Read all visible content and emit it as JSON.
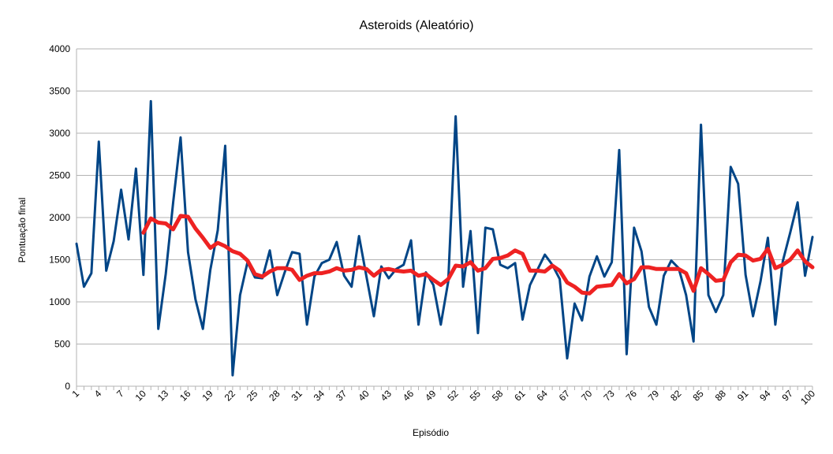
{
  "chart_data": {
    "type": "line",
    "title": "Asteroids (Aleatório)",
    "xlabel": "Episódio",
    "ylabel": "Pontuação final",
    "ylim": [
      0,
      4000
    ],
    "yticks": [
      0,
      500,
      1000,
      1500,
      2000,
      2500,
      3000,
      3500,
      4000
    ],
    "xtick_labels": [
      "1",
      "4",
      "7",
      "10",
      "13",
      "16",
      "19",
      "22",
      "25",
      "28",
      "31",
      "34",
      "37",
      "40",
      "43",
      "46",
      "49",
      "52",
      "55",
      "58",
      "61",
      "64",
      "67",
      "70",
      "73",
      "76",
      "79",
      "82",
      "85",
      "88",
      "91",
      "94",
      "97",
      "100"
    ],
    "grid": "horizontal",
    "legend": "none",
    "colors": {
      "scores": "#004586",
      "moving_average": "#ee2222",
      "grid": "#b3b3b3",
      "axis": "#b3b3b3"
    },
    "series": [
      {
        "key": "scores",
        "x_start": 1,
        "values": [
          1690,
          1180,
          1340,
          2900,
          1370,
          1720,
          2330,
          1740,
          2580,
          1320,
          3380,
          680,
          1330,
          2180,
          2950,
          1590,
          1030,
          680,
          1380,
          1850,
          2850,
          130,
          1080,
          1470,
          1290,
          1280,
          1610,
          1080,
          1350,
          1590,
          1570,
          730,
          1300,
          1460,
          1500,
          1710,
          1310,
          1180,
          1780,
          1300,
          830,
          1420,
          1280,
          1390,
          1440,
          1730,
          730,
          1350,
          1200,
          730,
          1240,
          3200,
          1180,
          1840,
          630,
          1880,
          1860,
          1440,
          1400,
          1460,
          790,
          1200,
          1380,
          1560,
          1440,
          1270,
          330,
          980,
          780,
          1300,
          1540,
          1300,
          1470,
          2800,
          380,
          1880,
          1600,
          940,
          730,
          1310,
          1490,
          1400,
          1080,
          530,
          3100,
          1080,
          880,
          1080,
          2600,
          2400,
          1320,
          830,
          1240,
          1760,
          730,
          1480,
          1820,
          2180,
          1310,
          1770
        ]
      },
      {
        "key": "moving_average",
        "x_start": 10,
        "values": [
          1820,
          1990,
          1940,
          1930,
          1860,
          2020,
          2010,
          1870,
          1760,
          1640,
          1700,
          1660,
          1600,
          1570,
          1490,
          1330,
          1300,
          1360,
          1400,
          1400,
          1380,
          1260,
          1310,
          1340,
          1340,
          1360,
          1400,
          1370,
          1380,
          1410,
          1390,
          1310,
          1380,
          1390,
          1370,
          1360,
          1370,
          1310,
          1330,
          1260,
          1200,
          1270,
          1430,
          1420,
          1470,
          1370,
          1400,
          1510,
          1520,
          1550,
          1610,
          1570,
          1370,
          1370,
          1360,
          1430,
          1370,
          1230,
          1180,
          1110,
          1100,
          1180,
          1190,
          1200,
          1330,
          1220,
          1270,
          1410,
          1410,
          1390,
          1390,
          1390,
          1390,
          1340,
          1130,
          1400,
          1330,
          1250,
          1260,
          1470,
          1560,
          1550,
          1490,
          1510,
          1630,
          1400,
          1440,
          1500,
          1610,
          1480,
          1410
        ]
      }
    ]
  }
}
